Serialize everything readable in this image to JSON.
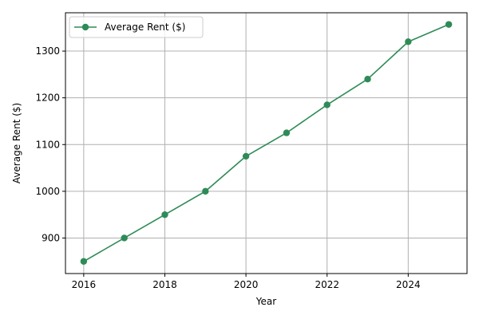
{
  "chart_data": {
    "type": "line",
    "title": "",
    "xlabel": "Year",
    "ylabel": "Average Rent ($)",
    "x": [
      2016,
      2017,
      2018,
      2019,
      2020,
      2021,
      2022,
      2023,
      2024,
      2025
    ],
    "series": [
      {
        "name": "Average Rent ($)",
        "values": [
          850,
          900,
          950,
          1000,
          1075,
          1125,
          1185,
          1240,
          1320,
          1357
        ],
        "color": "#2e8b57",
        "marker": "circle"
      }
    ],
    "xlim": [
      2015.55,
      2025.45
    ],
    "ylim": [
      824,
      1382
    ],
    "xticks": [
      2016,
      2018,
      2020,
      2022,
      2024
    ],
    "yticks": [
      900,
      1000,
      1100,
      1200,
      1300
    ],
    "xtick_labels": [
      "2016",
      "2018",
      "2020",
      "2022",
      "2024"
    ],
    "ytick_labels": [
      "900",
      "1000",
      "1100",
      "1200",
      "1300"
    ],
    "grid": true,
    "legend_position": "top-left"
  }
}
